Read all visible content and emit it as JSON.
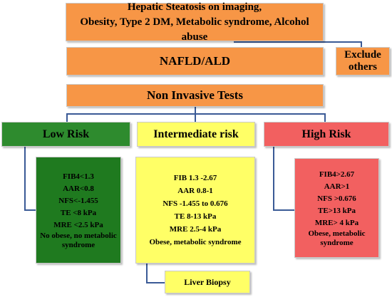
{
  "top": {
    "line1": "Hepatic Steatosis on imaging,",
    "line2": "Obesity, Type 2 DM, Metabolic syndrome, Alcohol abuse"
  },
  "nafld": {
    "label": "NAFLD/ALD"
  },
  "exclude": {
    "line1": "Exclude",
    "line2": "others"
  },
  "nit": {
    "label": "Non Invasive Tests"
  },
  "low": {
    "label": "Low Risk",
    "color": "#1f7a1f",
    "items": [
      "FIB4<1.3",
      "AAR<0.8",
      "NFS<-1.455",
      "TE <8 kPa",
      "MRE <2.5 kPa",
      "No obese, no metabolic syndrome"
    ]
  },
  "intermediate": {
    "label": "Intermediate risk",
    "color": "#ffff66",
    "items": [
      "FIB 1.3 -2.67",
      "AAR 0.8-1",
      "NFS -1.455 to 0.676",
      "TE 8-13 kPa",
      "MRE 2.5-4 kPa",
      "Obese, metabolic syndrome"
    ]
  },
  "high": {
    "label": "High Risk",
    "color": "#f26060",
    "items": [
      "FIB4>2.67",
      "AAR>1",
      "NFS >0.676",
      "TE>13 kPa",
      "MRE> 4 kPa",
      "Obese, metabolic syndrome"
    ]
  },
  "biopsy": {
    "label": "Liver Biopsy"
  }
}
